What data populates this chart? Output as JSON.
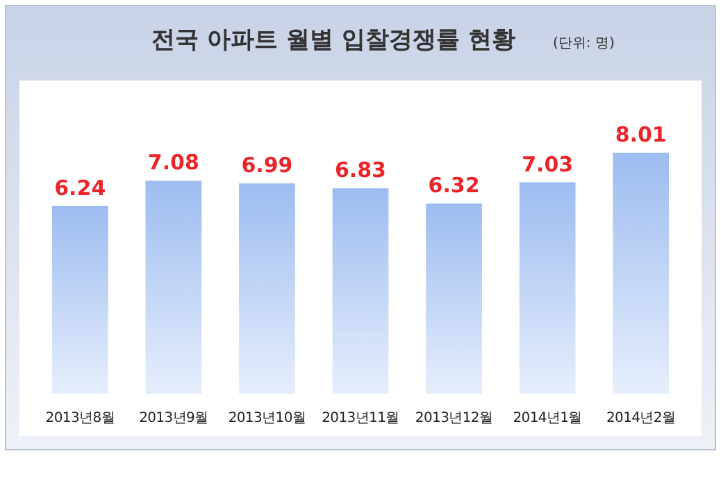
{
  "chart_data": {
    "type": "bar",
    "title": "전국 아파트 월별 입찰경쟁률 현황",
    "subtitle": "(단위: 명)",
    "categories": [
      "2013년8월",
      "2013년9월",
      "2013년10월",
      "2013년11월",
      "2013년12월",
      "2014년1월",
      "2014년2월"
    ],
    "values": [
      6.24,
      7.08,
      6.99,
      6.83,
      6.32,
      7.03,
      8.01
    ],
    "color": "#9dbcf0",
    "data_labels": true
  }
}
